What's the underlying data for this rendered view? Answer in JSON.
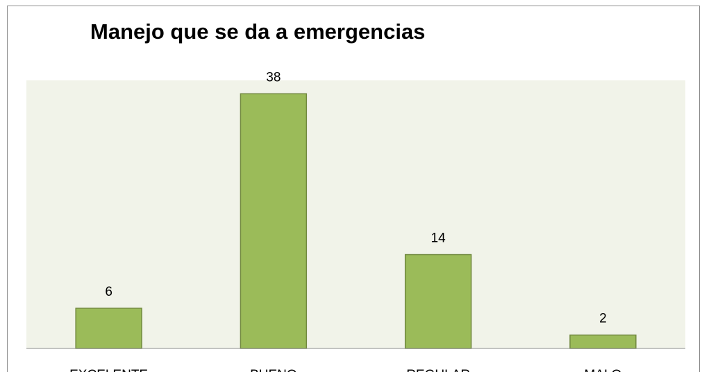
{
  "chart_data": {
    "type": "bar",
    "title": "Manejo que se da a emergencias",
    "categories": [
      "EXCELENTE",
      "BUENO",
      "REGULAR",
      "MALO"
    ],
    "values": [
      6,
      38,
      14,
      2
    ],
    "color": "#9bbb59",
    "ylim": [
      0,
      40
    ]
  }
}
